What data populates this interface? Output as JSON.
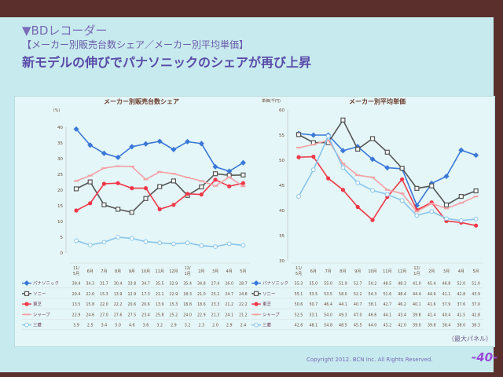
{
  "slide": {
    "section": "▼BDレコーダー",
    "subtitle": "【メーカー別販売台数シェア／メーカー別平均単価】",
    "headline": "新モデルの伸びでパナソニックのシェアが再び上昇",
    "note": "（最大パネル）",
    "copyright": "Copyright 2012. BCN Inc.  All Rights Reserved.",
    "page": "-40-"
  },
  "chart_data": [
    {
      "type": "line",
      "title": "メーカー別販売台数シェア",
      "ylabel": "(%)",
      "ylim": [
        0,
        40
      ],
      "yticks": [
        0,
        5,
        10,
        15,
        20,
        25,
        30,
        35,
        40
      ],
      "categories": [
        "11/5月",
        "6月",
        "7月",
        "8月",
        "9月",
        "10月",
        "11月",
        "12月",
        "12/1月",
        "2月",
        "3月",
        "4月",
        "5月"
      ],
      "series": [
        {
          "name": "パナソニック",
          "color": "#3a78d8",
          "marker": "diamond",
          "values": [
            39.4,
            34.3,
            31.7,
            30.4,
            33.8,
            34.7,
            35.5,
            32.9,
            35.4,
            34.8,
            27.4,
            26.0,
            28.7
          ]
        },
        {
          "name": "ソニー",
          "color": "#555555",
          "marker": "square-open",
          "values": [
            20.4,
            22.6,
            15.3,
            13.9,
            12.9,
            17.3,
            21.1,
            22.9,
            18.3,
            21.0,
            25.2,
            24.7,
            24.8
          ]
        },
        {
          "name": "東芝",
          "color": "#f03848",
          "marker": "circle",
          "values": [
            13.5,
            15.8,
            22.0,
            22.2,
            20.6,
            20.6,
            13.9,
            15.3,
            18.8,
            18.6,
            23.3,
            21.2,
            22.2
          ]
        },
        {
          "name": "シャープ",
          "color": "#f4a0a4",
          "marker": "dash",
          "values": [
            22.9,
            24.6,
            27.0,
            27.6,
            27.5,
            23.4,
            25.8,
            25.2,
            24.0,
            22.9,
            21.3,
            24.1,
            21.2
          ]
        },
        {
          "name": "三菱",
          "color": "#88c4ea",
          "marker": "circle-open",
          "values": [
            3.9,
            2.5,
            3.4,
            5.0,
            4.6,
            3.6,
            3.2,
            2.9,
            3.2,
            2.3,
            2.0,
            2.9,
            2.4
          ]
        }
      ]
    },
    {
      "type": "line",
      "title": "メーカー別平均単価",
      "ylabel": "単価(千円)",
      "ylim": [
        30,
        60
      ],
      "yticks": [
        30,
        35,
        40,
        45,
        50,
        55,
        60
      ],
      "categories": [
        "11/5月",
        "6月",
        "7月",
        "8月",
        "9月",
        "10月",
        "11月",
        "12月",
        "12/1月",
        "2月",
        "3月",
        "4月",
        "5月"
      ],
      "series": [
        {
          "name": "パナソニック",
          "color": "#3a78d8",
          "marker": "diamond",
          "values": [
            55.3,
            55.0,
            55.0,
            51.9,
            52.7,
            50.2,
            48.5,
            48.3,
            41.0,
            45.4,
            46.8,
            52.0,
            51.0
          ]
        },
        {
          "name": "ソニー",
          "color": "#555555",
          "marker": "square-open",
          "values": [
            55.1,
            53.5,
            53.5,
            58.0,
            52.2,
            54.3,
            51.6,
            48.4,
            44.4,
            44.9,
            41.1,
            42.8,
            43.9
          ]
        },
        {
          "name": "東芝",
          "color": "#f03848",
          "marker": "circle",
          "values": [
            50.6,
            50.7,
            46.4,
            44.1,
            40.7,
            38.1,
            42.7,
            46.2,
            40.1,
            41.6,
            37.9,
            37.6,
            37.0
          ]
        },
        {
          "name": "シャープ",
          "color": "#f4a0a4",
          "marker": "dash",
          "values": [
            52.5,
            53.1,
            54.0,
            49.3,
            47.0,
            46.6,
            44.1,
            43.4,
            39.8,
            41.4,
            40.4,
            41.5,
            42.8
          ]
        },
        {
          "name": "三菱",
          "color": "#88c4ea",
          "marker": "circle-open",
          "values": [
            42.8,
            48.1,
            54.8,
            48.5,
            45.5,
            44.0,
            43.2,
            42.0,
            39.0,
            39.8,
            38.4,
            38.0,
            38.3
          ]
        }
      ]
    }
  ]
}
